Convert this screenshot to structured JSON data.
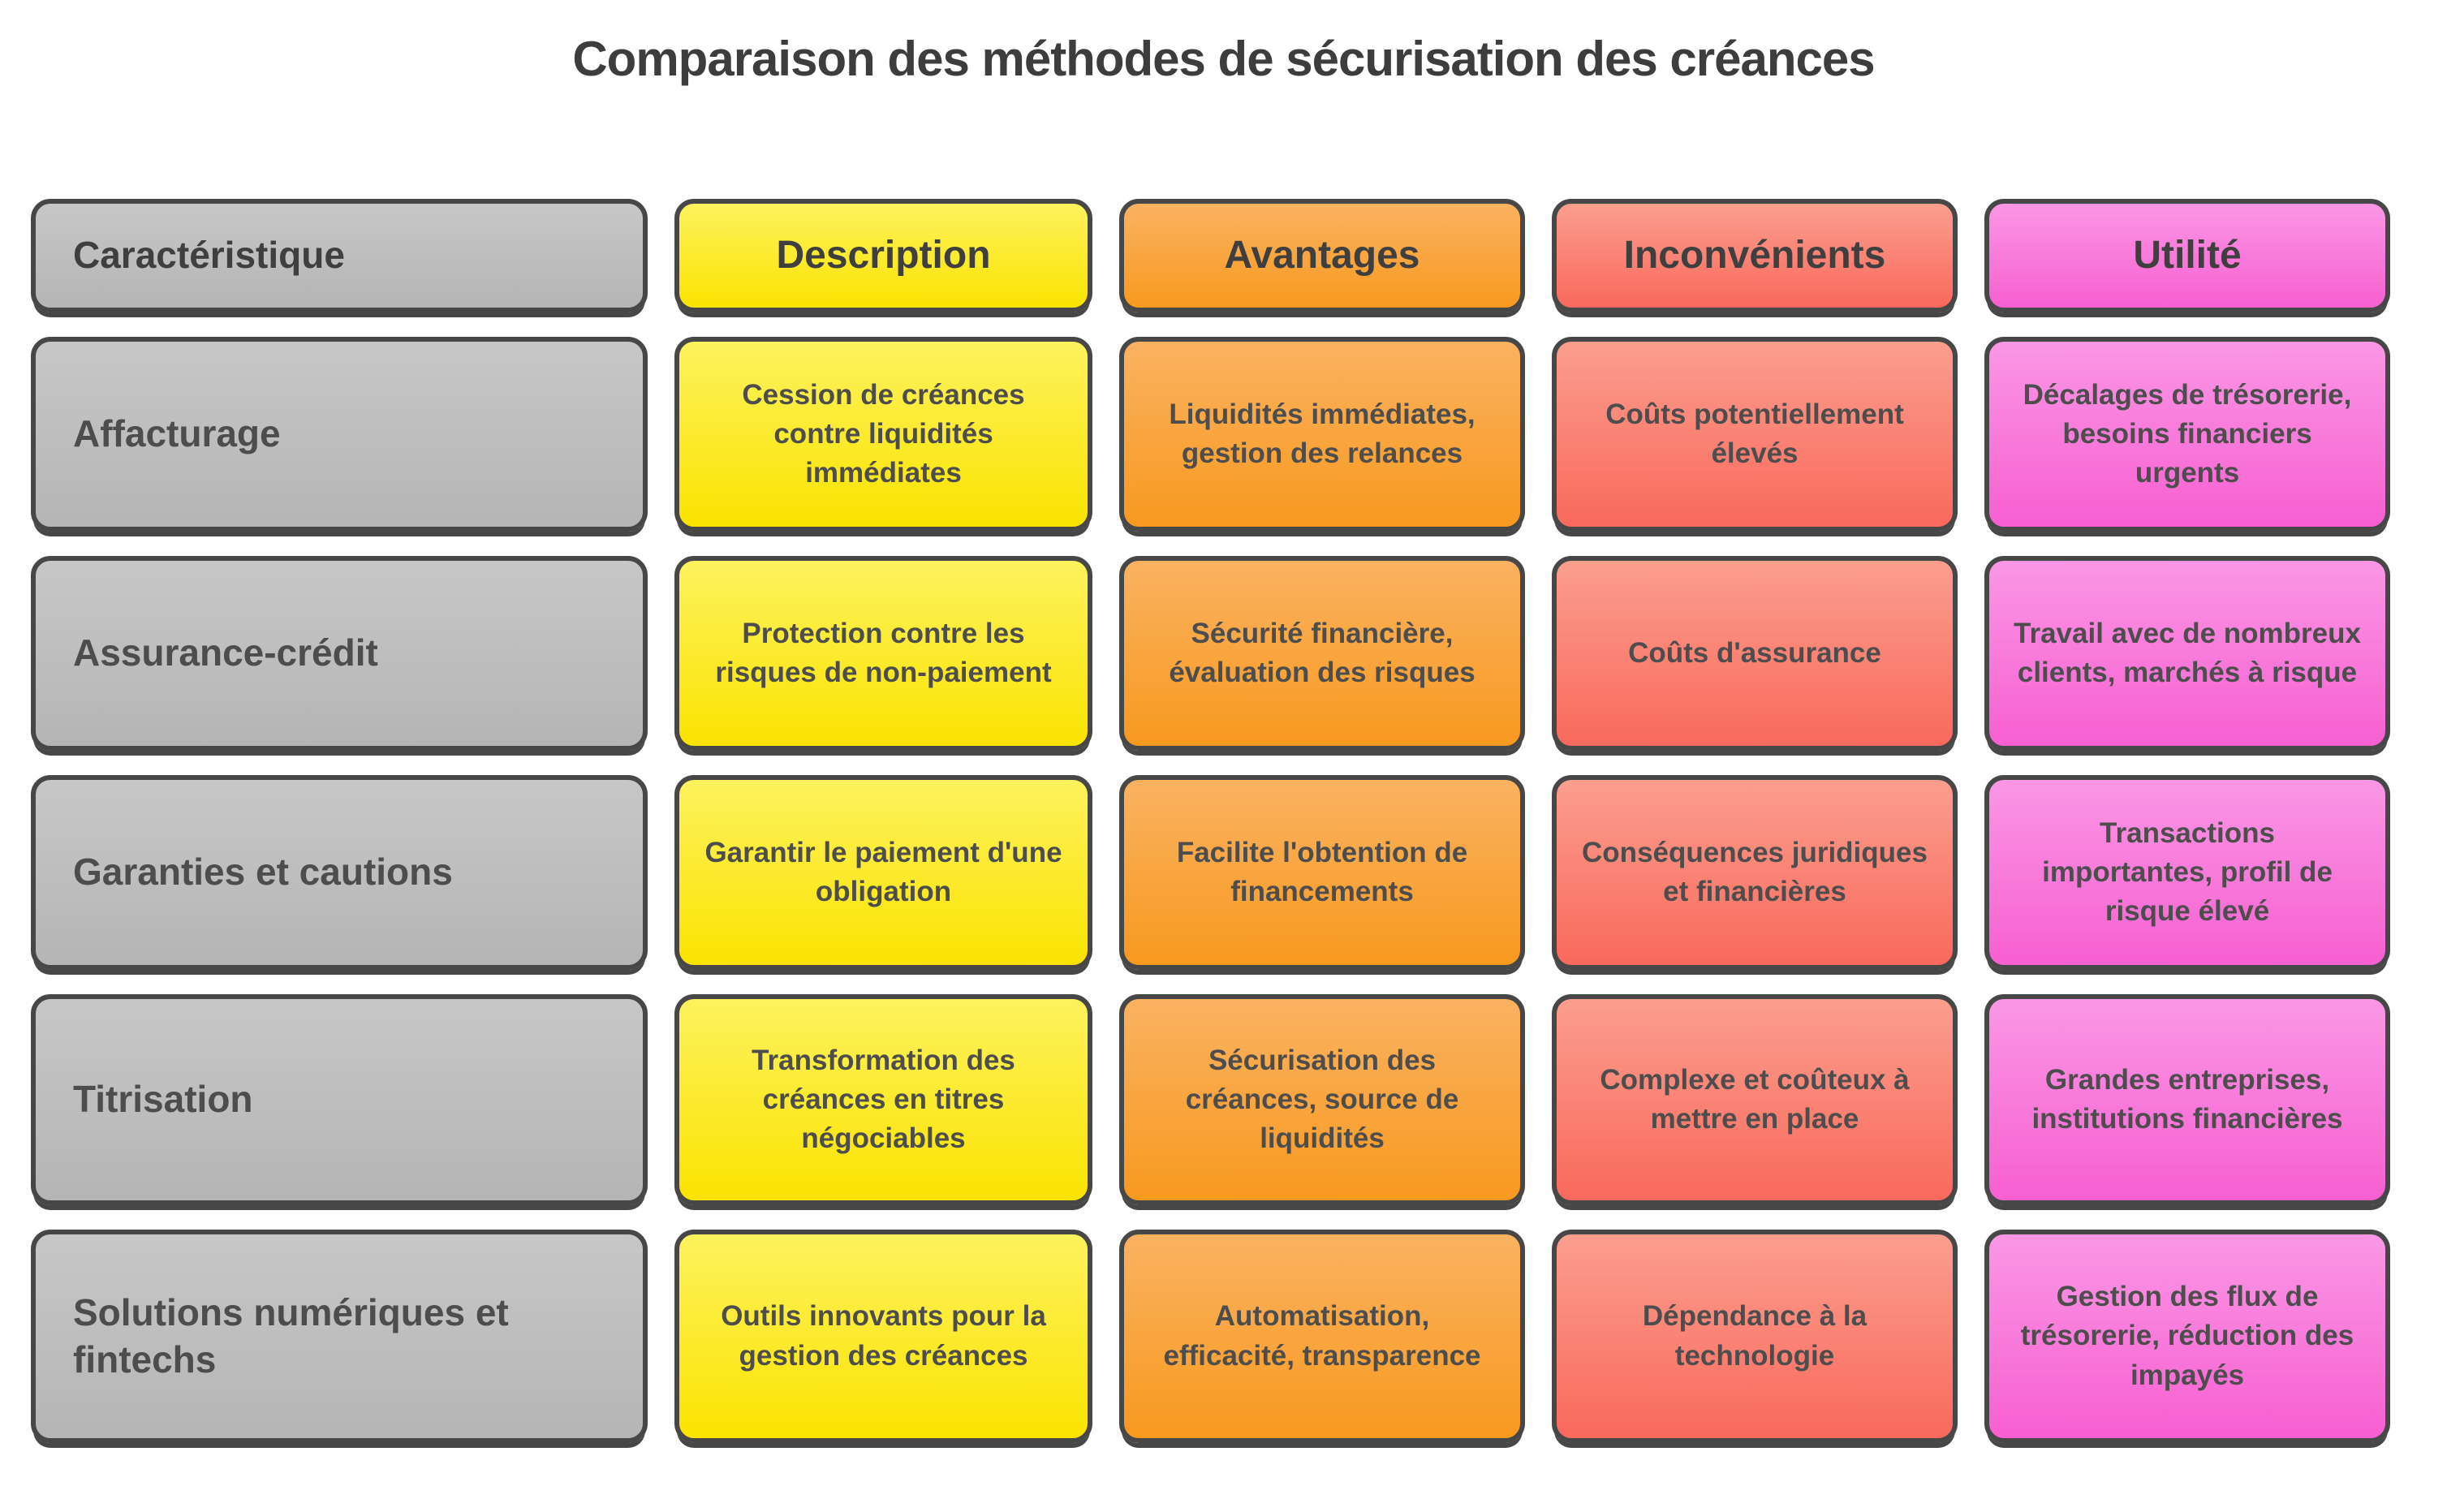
{
  "title": "Comparaison des méthodes de sécurisation des créances",
  "chart_data": {
    "type": "table",
    "title": "Comparaison des méthodes de sécurisation des créances",
    "columns": [
      "Caractéristique",
      "Description",
      "Avantages",
      "Inconvénients",
      "Utilité"
    ],
    "rows": [
      {
        "feature": "Affacturage",
        "description": "Cession de créances contre liquidités immédiates",
        "avantages": "Liquidités immédiates, gestion des relances",
        "inconvenients": "Coûts potentiellement élevés",
        "utilite": "Décalages de trésorerie, besoins financiers urgents"
      },
      {
        "feature": "Assurance-crédit",
        "description": "Protection contre les risques de non-paiement",
        "avantages": "Sécurité financière, évaluation des risques",
        "inconvenients": "Coûts d'assurance",
        "utilite": "Travail avec de nombreux clients, marchés à risque"
      },
      {
        "feature": "Garanties et cautions",
        "description": "Garantir le paiement d'une obligation",
        "avantages": "Facilite l'obtention de financements",
        "inconvenients": "Conséquences juridiques et financières",
        "utilite": "Transactions importantes, profil de risque élevé"
      },
      {
        "feature": "Titrisation",
        "description": "Transformation des créances en titres négociables",
        "avantages": "Sécurisation des créances, source de liquidités",
        "inconvenients": "Complexe et coûteux à mettre en place",
        "utilite": "Grandes entreprises, institutions financières"
      },
      {
        "feature": "Solutions numériques et fintechs",
        "description": "Outils innovants pour la gestion des créances",
        "avantages": "Automatisation, efficacité, transparence",
        "inconvenients": "Dépendance à la technologie",
        "utilite": "Gestion des flux de trésorerie, réduction des impayés"
      }
    ],
    "column_colors": {
      "Caractéristique": "#bdbdbd",
      "Description": "#fde600",
      "Avantages": "#f89b24",
      "Inconvénients": "#f96a5d",
      "Utilité": "#f75fd1"
    }
  },
  "colors": {
    "gray_top": "#c7c7c7",
    "gray_bottom": "#b5b5b5",
    "yellow_top": "#fdf25e",
    "yellow_bottom": "#fbe300",
    "orange_top": "#fab261",
    "orange_bottom": "#f8991f",
    "red_top": "#fb9e8e",
    "red_bottom": "#f9695d",
    "pink_top": "#fa97e5",
    "pink_bottom": "#f75fd1",
    "border": "#474747",
    "text": "#4d4d4d"
  }
}
